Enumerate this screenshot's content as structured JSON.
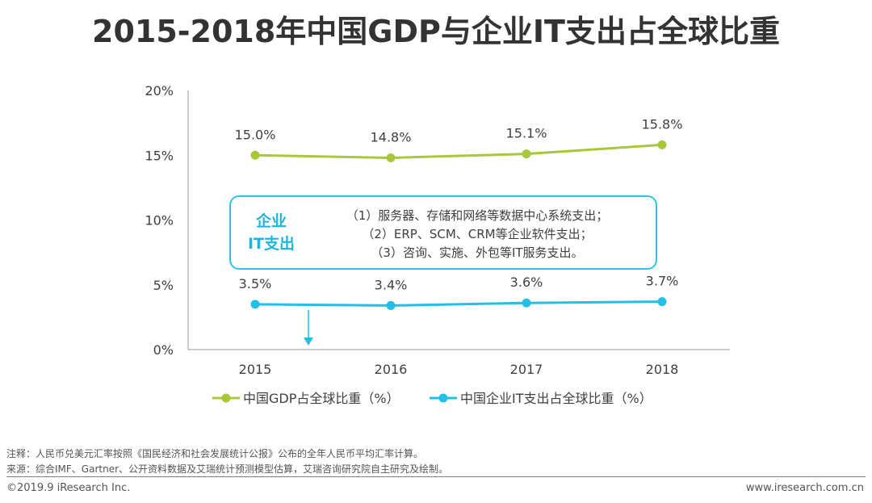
{
  "title": "2015-2018年中国GDP与企业IT支出占全球比重",
  "chart_data": {
    "type": "line",
    "categories": [
      "2015",
      "2016",
      "2017",
      "2018"
    ],
    "y_ticks": [
      "0%",
      "5%",
      "10%",
      "15%",
      "20%"
    ],
    "ylim": [
      0,
      20
    ],
    "series": [
      {
        "name": "中国GDP占全球比重（%）",
        "values": [
          15.0,
          14.8,
          15.1,
          15.8
        ],
        "labels": [
          "15.0%",
          "14.8%",
          "15.1%",
          "15.8%"
        ],
        "color": "#a8c83a"
      },
      {
        "name": "中国企业IT支出占全球比重（%）",
        "values": [
          3.5,
          3.4,
          3.6,
          3.7
        ],
        "labels": [
          "3.5%",
          "3.4%",
          "3.6%",
          "3.7%"
        ],
        "color": "#22bfe6"
      }
    ]
  },
  "callout": {
    "label_line1": "企业",
    "label_line2": "IT支出",
    "lines": [
      "（1）服务器、存储和网络等数据中心系统支出；",
      "（2）ERP、SCM、CRM等企业软件支出；",
      "（3）咨询、实施、外包等IT服务支出。"
    ]
  },
  "notes": {
    "note": "注释：人民币兑美元汇率按照《国民经济和社会发展统计公报》公布的全年人民币平均汇率计算。",
    "source": "来源：综合IMF、Gartner、公开资料数据及艾瑞统计预测模型估算，艾瑞咨询研究院自主研究及绘制。"
  },
  "footer": {
    "copyright": "©2019.9 iResearch Inc.",
    "website": "www.iresearch.com.cn"
  }
}
